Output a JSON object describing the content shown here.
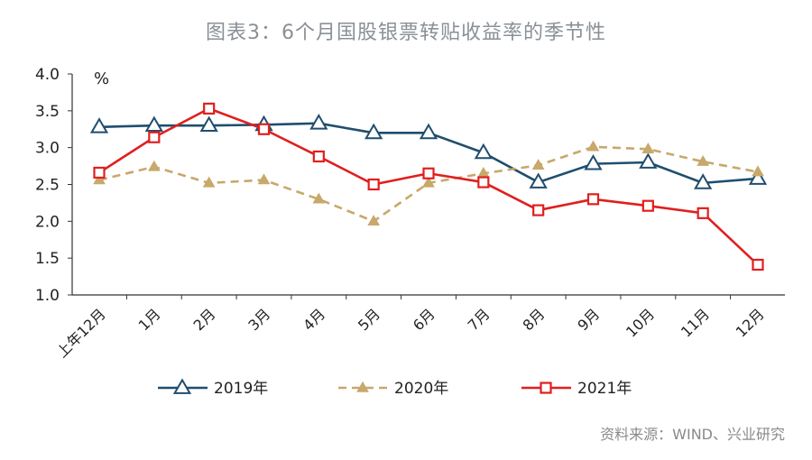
{
  "title": "图表3：6个月国股银票转贴收益率的季节性",
  "source": "资料来源：WIND、兴业研究",
  "colors": {
    "series_2019": "#1f4e6e",
    "series_2020": "#c8a86b",
    "series_2021": "#e01f1f",
    "axis": "#333333",
    "text": "#222222"
  },
  "chart_data": {
    "type": "line",
    "unit_label": "%",
    "categories": [
      "上年12月",
      "1月",
      "2月",
      "3月",
      "4月",
      "5月",
      "6月",
      "7月",
      "8月",
      "9月",
      "10月",
      "11月",
      "12月"
    ],
    "yticks": [
      "4.0",
      "3.5",
      "3.0",
      "2.5",
      "2.0",
      "1.5",
      "1.0"
    ],
    "ylim": [
      1.0,
      4.0
    ],
    "grid": false,
    "legend_position": "bottom",
    "series": [
      {
        "name": "2019年",
        "marker": "triangle",
        "style": "solid",
        "values": [
          3.28,
          3.3,
          3.3,
          3.31,
          3.33,
          3.2,
          3.2,
          2.93,
          2.53,
          2.78,
          2.8,
          2.52,
          2.58
        ]
      },
      {
        "name": "2020年",
        "marker": "triangle-small",
        "style": "dashed",
        "values": [
          2.56,
          2.74,
          2.52,
          2.56,
          2.3,
          2.0,
          2.52,
          2.65,
          2.76,
          3.01,
          2.98,
          2.81,
          2.67
        ]
      },
      {
        "name": "2021年",
        "marker": "square",
        "style": "solid",
        "values": [
          2.66,
          3.14,
          3.53,
          3.25,
          2.88,
          2.5,
          2.65,
          2.53,
          2.15,
          2.3,
          2.21,
          2.11,
          1.41
        ]
      }
    ]
  }
}
